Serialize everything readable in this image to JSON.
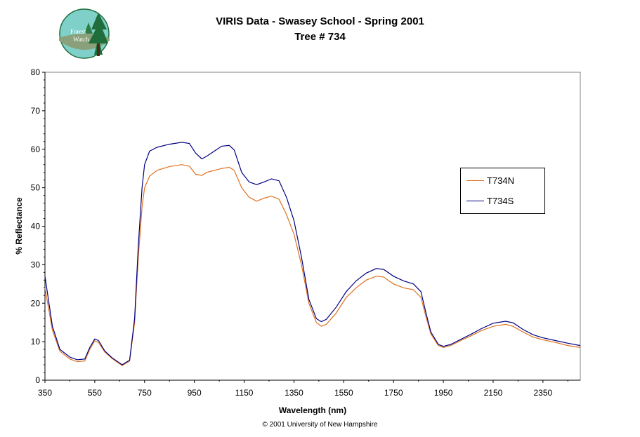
{
  "title": "VIRIS Data - Swasey School - Spring 2001",
  "subtitle": "Tree # 734",
  "logo_text": [
    "Forest",
    "Watch"
  ],
  "footer": "© 2001 University of New Hampshire",
  "chart_data": {
    "type": "line",
    "title": "VIRIS Data - Swasey School - Spring 2001",
    "subtitle": "Tree # 734",
    "xlabel": "Wavelength (nm)",
    "ylabel": "% Reflectance",
    "xlim": [
      350,
      2500
    ],
    "ylim": [
      0,
      80
    ],
    "x_ticks": [
      350,
      550,
      750,
      950,
      1150,
      1350,
      1550,
      1750,
      1950,
      2150,
      2350
    ],
    "y_ticks": [
      0,
      10,
      20,
      30,
      40,
      50,
      60,
      70,
      80
    ],
    "grid": false,
    "legend_position": "right",
    "series": [
      {
        "name": "T734N",
        "color": "#e0701e",
        "points": [
          [
            350,
            24
          ],
          [
            380,
            13
          ],
          [
            410,
            7.5
          ],
          [
            450,
            5.5
          ],
          [
            480,
            4.8
          ],
          [
            510,
            5
          ],
          [
            530,
            8
          ],
          [
            550,
            10.2
          ],
          [
            565,
            9.8
          ],
          [
            590,
            7.3
          ],
          [
            620,
            5.6
          ],
          [
            660,
            3.8
          ],
          [
            690,
            5
          ],
          [
            710,
            15
          ],
          [
            725,
            32
          ],
          [
            740,
            45
          ],
          [
            750,
            50
          ],
          [
            770,
            53
          ],
          [
            800,
            54.5
          ],
          [
            850,
            55.5
          ],
          [
            900,
            56
          ],
          [
            930,
            55.6
          ],
          [
            955,
            53.5
          ],
          [
            980,
            53.2
          ],
          [
            1000,
            54
          ],
          [
            1030,
            54.5
          ],
          [
            1060,
            55
          ],
          [
            1090,
            55.3
          ],
          [
            1110,
            54.5
          ],
          [
            1140,
            50
          ],
          [
            1170,
            47.5
          ],
          [
            1200,
            46.5
          ],
          [
            1230,
            47.3
          ],
          [
            1260,
            47.8
          ],
          [
            1290,
            47
          ],
          [
            1320,
            43
          ],
          [
            1350,
            38
          ],
          [
            1380,
            30
          ],
          [
            1410,
            20
          ],
          [
            1440,
            15
          ],
          [
            1460,
            14
          ],
          [
            1480,
            14.5
          ],
          [
            1520,
            17.5
          ],
          [
            1560,
            21.5
          ],
          [
            1600,
            24
          ],
          [
            1640,
            26
          ],
          [
            1680,
            27
          ],
          [
            1710,
            26.8
          ],
          [
            1750,
            25
          ],
          [
            1790,
            24
          ],
          [
            1830,
            23.5
          ],
          [
            1860,
            21.5
          ],
          [
            1880,
            16.5
          ],
          [
            1900,
            12
          ],
          [
            1930,
            9
          ],
          [
            1950,
            8.5
          ],
          [
            1980,
            9
          ],
          [
            2020,
            10.3
          ],
          [
            2060,
            11.5
          ],
          [
            2100,
            12.8
          ],
          [
            2150,
            14
          ],
          [
            2200,
            14.5
          ],
          [
            2230,
            14
          ],
          [
            2270,
            12.5
          ],
          [
            2310,
            11.2
          ],
          [
            2350,
            10.5
          ],
          [
            2400,
            9.8
          ],
          [
            2450,
            9
          ],
          [
            2500,
            8.5
          ]
        ]
      },
      {
        "name": "T734S",
        "color": "#000080",
        "points": [
          [
            350,
            27
          ],
          [
            380,
            14
          ],
          [
            410,
            8
          ],
          [
            450,
            6
          ],
          [
            480,
            5.3
          ],
          [
            510,
            5.5
          ],
          [
            530,
            8.5
          ],
          [
            550,
            10.7
          ],
          [
            565,
            10.3
          ],
          [
            590,
            7.6
          ],
          [
            620,
            5.8
          ],
          [
            660,
            4
          ],
          [
            690,
            5.2
          ],
          [
            710,
            16
          ],
          [
            725,
            35
          ],
          [
            740,
            50
          ],
          [
            750,
            56
          ],
          [
            770,
            59.5
          ],
          [
            800,
            60.5
          ],
          [
            850,
            61.3
          ],
          [
            900,
            61.8
          ],
          [
            930,
            61.5
          ],
          [
            955,
            59
          ],
          [
            980,
            57.5
          ],
          [
            1000,
            58.2
          ],
          [
            1030,
            59.5
          ],
          [
            1060,
            60.8
          ],
          [
            1090,
            61
          ],
          [
            1110,
            59.8
          ],
          [
            1140,
            54
          ],
          [
            1170,
            51.5
          ],
          [
            1200,
            50.8
          ],
          [
            1230,
            51.5
          ],
          [
            1260,
            52.3
          ],
          [
            1290,
            51.8
          ],
          [
            1320,
            47.5
          ],
          [
            1350,
            41.5
          ],
          [
            1380,
            32
          ],
          [
            1410,
            21
          ],
          [
            1440,
            16
          ],
          [
            1460,
            15.2
          ],
          [
            1480,
            15.8
          ],
          [
            1520,
            19
          ],
          [
            1560,
            23
          ],
          [
            1600,
            25.8
          ],
          [
            1640,
            27.8
          ],
          [
            1680,
            29
          ],
          [
            1710,
            28.8
          ],
          [
            1750,
            27
          ],
          [
            1790,
            25.8
          ],
          [
            1830,
            25
          ],
          [
            1860,
            23
          ],
          [
            1880,
            17.5
          ],
          [
            1900,
            12.5
          ],
          [
            1930,
            9.3
          ],
          [
            1950,
            8.8
          ],
          [
            1980,
            9.3
          ],
          [
            2020,
            10.6
          ],
          [
            2060,
            11.9
          ],
          [
            2100,
            13.3
          ],
          [
            2150,
            14.8
          ],
          [
            2200,
            15.3
          ],
          [
            2230,
            14.9
          ],
          [
            2270,
            13.2
          ],
          [
            2310,
            11.8
          ],
          [
            2350,
            11
          ],
          [
            2400,
            10.3
          ],
          [
            2450,
            9.6
          ],
          [
            2500,
            9
          ]
        ]
      }
    ]
  }
}
